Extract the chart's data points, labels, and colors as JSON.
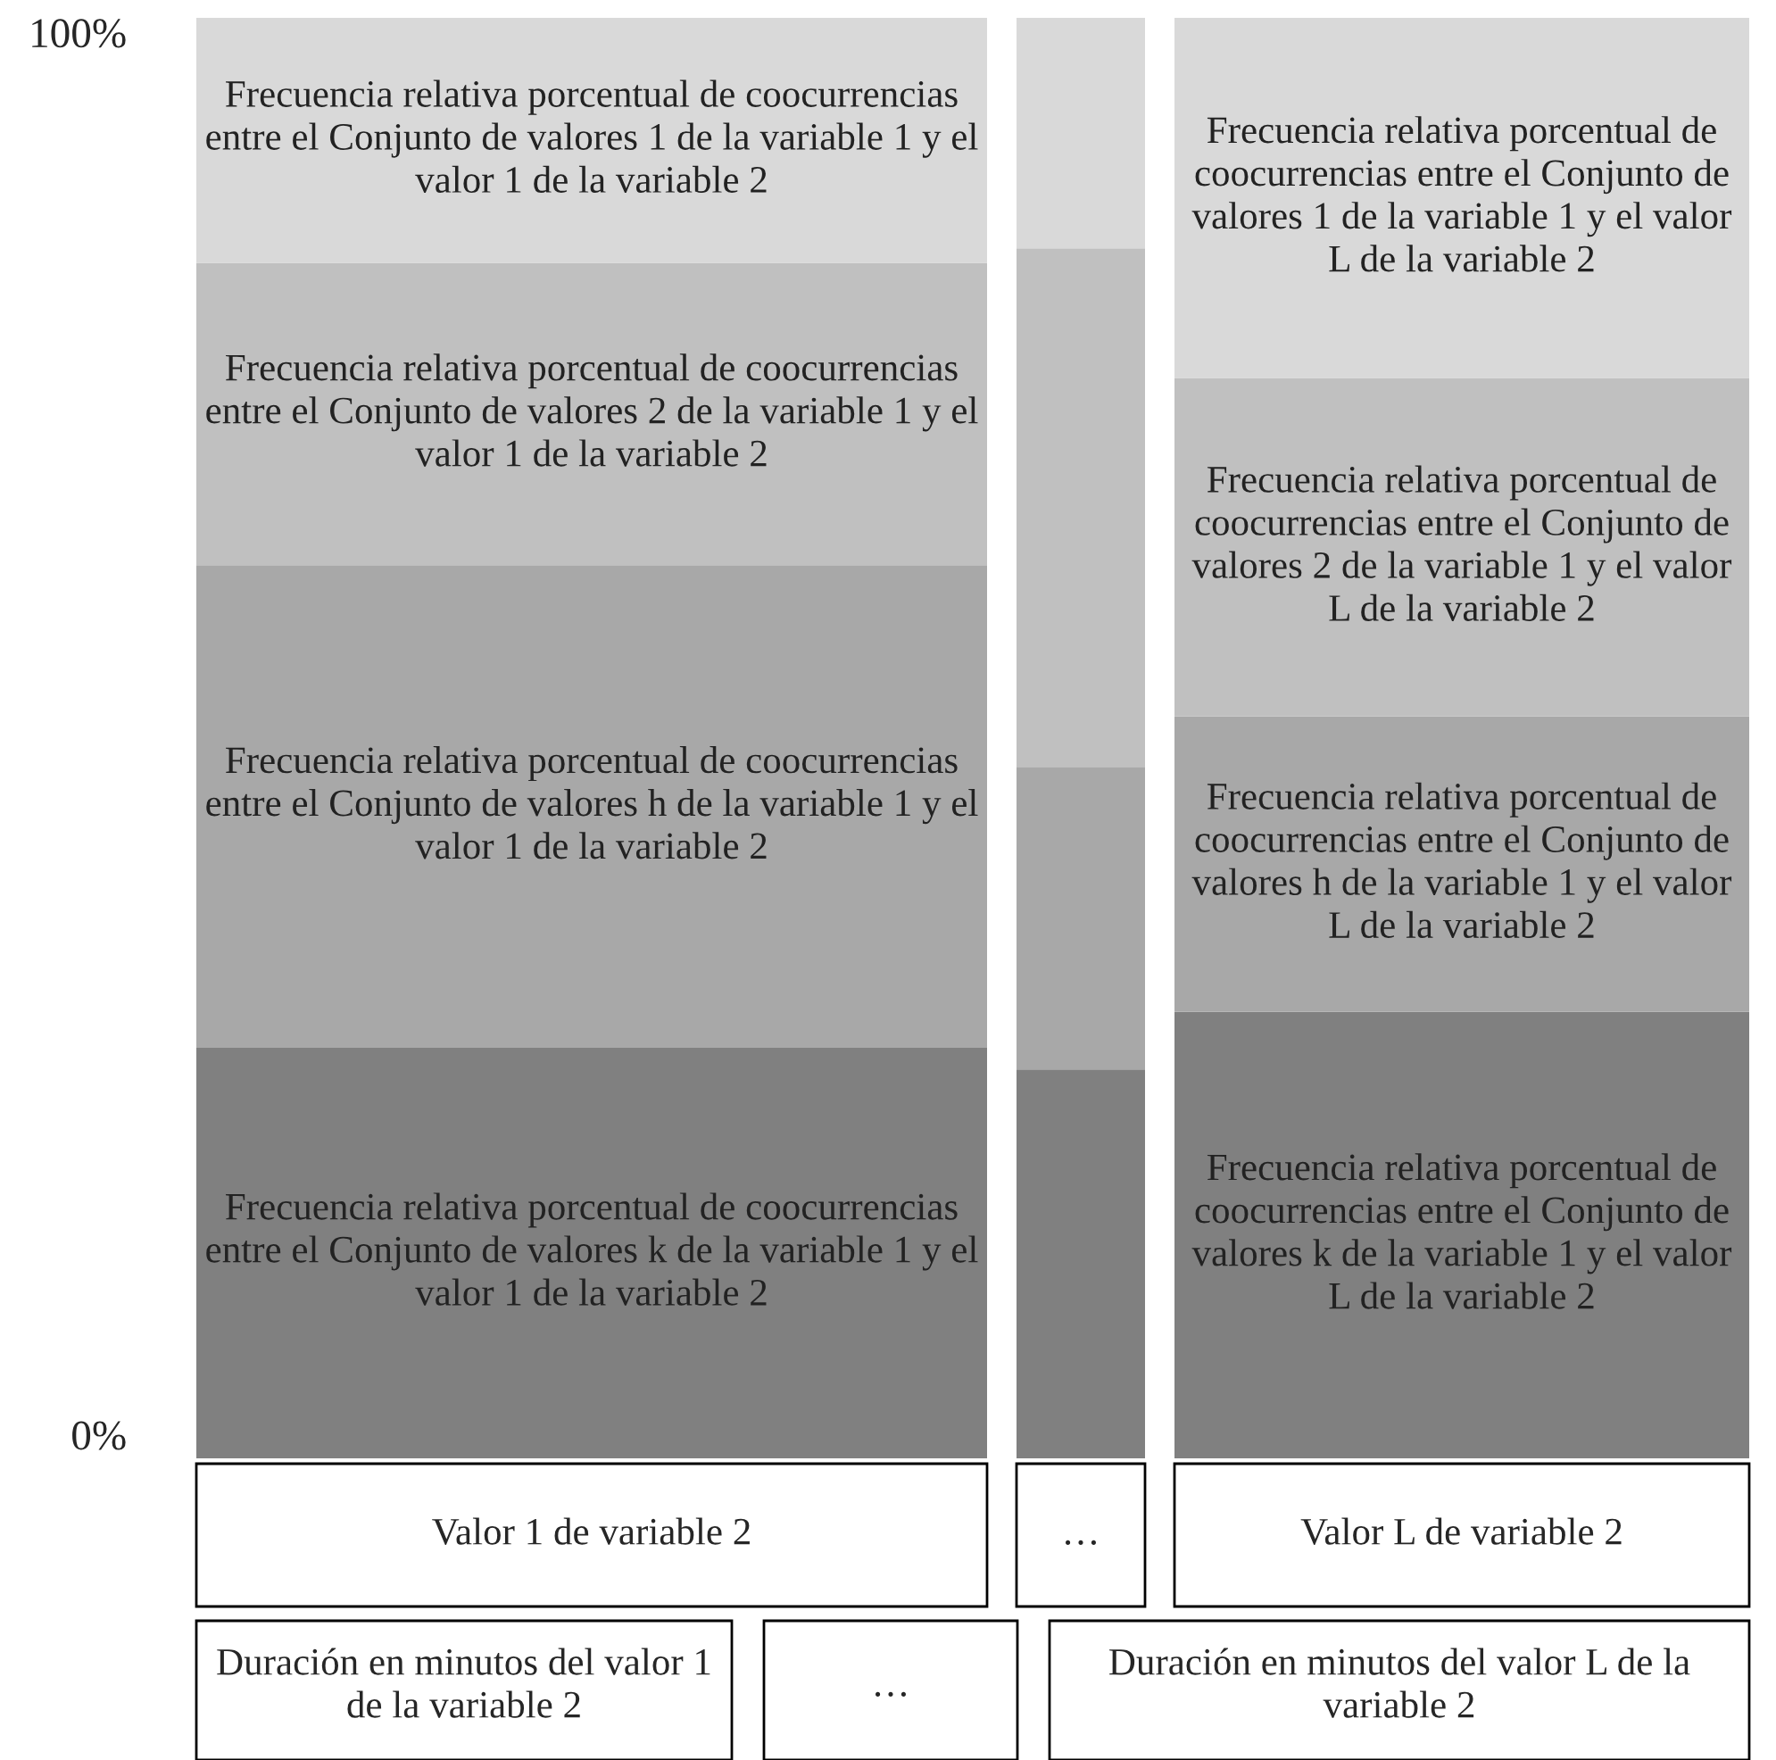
{
  "chart_data": {
    "type": "bar",
    "stacked": true,
    "categories": [
      "Valor 1 de variable 2",
      "…",
      "Valor L de variable 2"
    ],
    "ylim": [
      0,
      1
    ],
    "yticks": [
      {
        "value": 0,
        "label": "0%"
      },
      {
        "value": 1,
        "label": "100%"
      }
    ],
    "grid": false,
    "legend": false,
    "series": [
      {
        "color": "#808080",
        "values": [
          0.285,
          0.27,
          0.31
        ],
        "value_labels": [
          "Frecuencia relativa porcentual de coocurrencias entre el Conjunto de valores k de la variable 1 y el valor 1 de la variable 2",
          null,
          "Frecuencia relativa porcentual de coocurrencias entre el Conjunto de valores k de la variable 1 y el valor L de la variable 2"
        ]
      },
      {
        "color": "#a8a8a8",
        "values": [
          0.335,
          0.21,
          0.205
        ],
        "value_labels": [
          "Frecuencia relativa porcentual de coocurrencias entre el Conjunto de valores h de la variable 1 y el valor 1 de la variable 2",
          null,
          "Frecuencia relativa porcentual de coocurrencias entre el Conjunto de valores h de la variable 1 y el valor L de la variable 2"
        ]
      },
      {
        "color": "#c0c0c0",
        "values": [
          0.21,
          0.36,
          0.235
        ],
        "value_labels": [
          "Frecuencia relativa porcentual de coocurrencias entre el Conjunto de valores 2 de la variable 1 y el valor 1 de la variable 2",
          null,
          "Frecuencia relativa porcentual de coocurrencias entre el Conjunto de valores 2 de la variable 1 y el valor L de la variable 2"
        ]
      },
      {
        "color": "#d9d9d9",
        "values": [
          0.17,
          0.16,
          0.25
        ],
        "value_labels": [
          "Frecuencia relativa porcentual de coocurrencias entre el Conjunto de valores 1 de la variable 1 y el valor 1 de la variable 2",
          null,
          "Frecuencia relativa porcentual de coocurrencias entre el Conjunto de valores 1 de la variable 1 y el valor L de la variable 2"
        ]
      }
    ],
    "annotations": [
      "Duración en minutos del valor 1 de la variable 2",
      "…",
      "Duración en minutos del valor L de la variable 2"
    ]
  }
}
